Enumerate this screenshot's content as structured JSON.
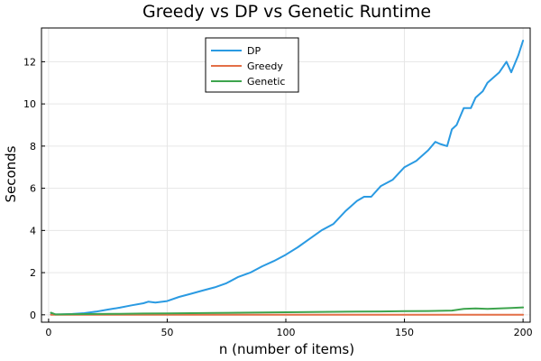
{
  "chart_data": {
    "type": "line",
    "title": "Greedy vs DP vs Genetic Runtime",
    "xlabel": "n (number of items)",
    "ylabel": "Seconds",
    "xlim": [
      -3,
      203
    ],
    "ylim": [
      -0.35,
      13.6
    ],
    "xticks": [
      0,
      50,
      100,
      150,
      200
    ],
    "yticks": [
      0,
      2,
      4,
      6,
      8,
      10,
      12
    ],
    "grid": true,
    "legend_position": "top-center",
    "series": [
      {
        "name": "DP",
        "color": "#2a9ae2",
        "x": [
          1,
          5,
          10,
          15,
          20,
          25,
          30,
          35,
          40,
          42,
          45,
          50,
          55,
          60,
          65,
          70,
          75,
          80,
          85,
          90,
          95,
          100,
          105,
          110,
          115,
          120,
          125,
          130,
          133,
          136,
          140,
          145,
          150,
          155,
          160,
          163,
          165,
          168,
          170,
          172,
          175,
          178,
          180,
          183,
          185,
          190,
          193,
          195,
          198,
          200
        ],
        "y": [
          0.02,
          0.02,
          0.04,
          0.08,
          0.15,
          0.25,
          0.34,
          0.45,
          0.55,
          0.62,
          0.58,
          0.65,
          0.85,
          1.0,
          1.15,
          1.3,
          1.5,
          1.8,
          2.0,
          2.3,
          2.55,
          2.85,
          3.2,
          3.6,
          4.0,
          4.3,
          4.9,
          5.4,
          5.6,
          5.6,
          6.1,
          6.4,
          7.0,
          7.3,
          7.8,
          8.2,
          8.1,
          8.0,
          8.8,
          9.0,
          9.8,
          9.8,
          10.3,
          10.6,
          11.0,
          11.5,
          12.0,
          11.5,
          12.3,
          13.0
        ]
      },
      {
        "name": "Greedy",
        "color": "#e36f47",
        "x": [
          1,
          50,
          100,
          150,
          200
        ],
        "y": [
          0.0,
          0.0,
          0.0,
          0.0,
          0.0
        ]
      },
      {
        "name": "Genetic",
        "color": "#3da44d",
        "x": [
          1,
          3,
          10,
          20,
          30,
          40,
          50,
          60,
          70,
          80,
          90,
          100,
          110,
          120,
          130,
          140,
          150,
          160,
          170,
          175,
          180,
          185,
          190,
          195,
          200
        ],
        "y": [
          0.1,
          0.02,
          0.03,
          0.04,
          0.05,
          0.06,
          0.07,
          0.08,
          0.09,
          0.1,
          0.11,
          0.12,
          0.13,
          0.14,
          0.15,
          0.16,
          0.17,
          0.18,
          0.2,
          0.28,
          0.3,
          0.28,
          0.3,
          0.32,
          0.35
        ]
      }
    ]
  }
}
